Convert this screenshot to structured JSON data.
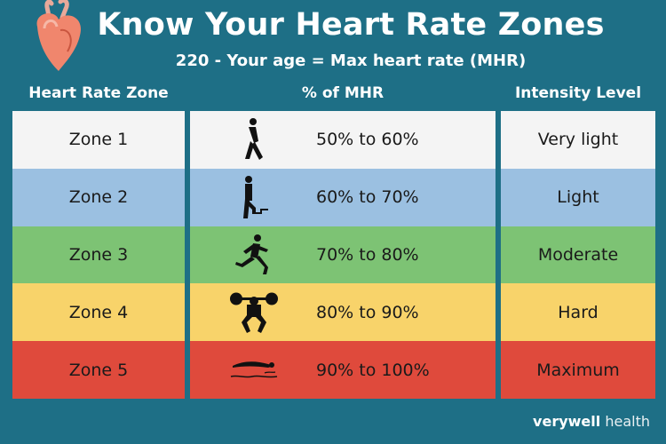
{
  "header": {
    "title": "Know Your Heart Rate Zones",
    "subtitle": "220 - Your age = Max heart rate (MHR)"
  },
  "columns": {
    "zone": "Heart Rate Zone",
    "percent": "% of MHR",
    "intensity": "Intensity Level"
  },
  "rows": [
    {
      "zone": "Zone 1",
      "percent": "50% to 60%",
      "intensity": "Very light",
      "icon": "walking-person-icon",
      "color": "#f4f4f4"
    },
    {
      "zone": "Zone 2",
      "percent": "60% to 70%",
      "intensity": "Light",
      "icon": "stair-climbing-person-icon",
      "color": "#9bc0e1"
    },
    {
      "zone": "Zone 3",
      "percent": "70% to 80%",
      "intensity": "Moderate",
      "icon": "running-person-icon",
      "color": "#7dc374"
    },
    {
      "zone": "Zone 4",
      "percent": "80% to 90%",
      "intensity": "Hard",
      "icon": "weightlifting-person-icon",
      "color": "#f8d36a"
    },
    {
      "zone": "Zone 5",
      "percent": "90% to 100%",
      "intensity": "Maximum",
      "icon": "swimming-person-icon",
      "color": "#df4a3c"
    }
  ],
  "brand": {
    "name": "verywell",
    "suffix": "health"
  },
  "colors": {
    "background": "#1e6f86"
  }
}
